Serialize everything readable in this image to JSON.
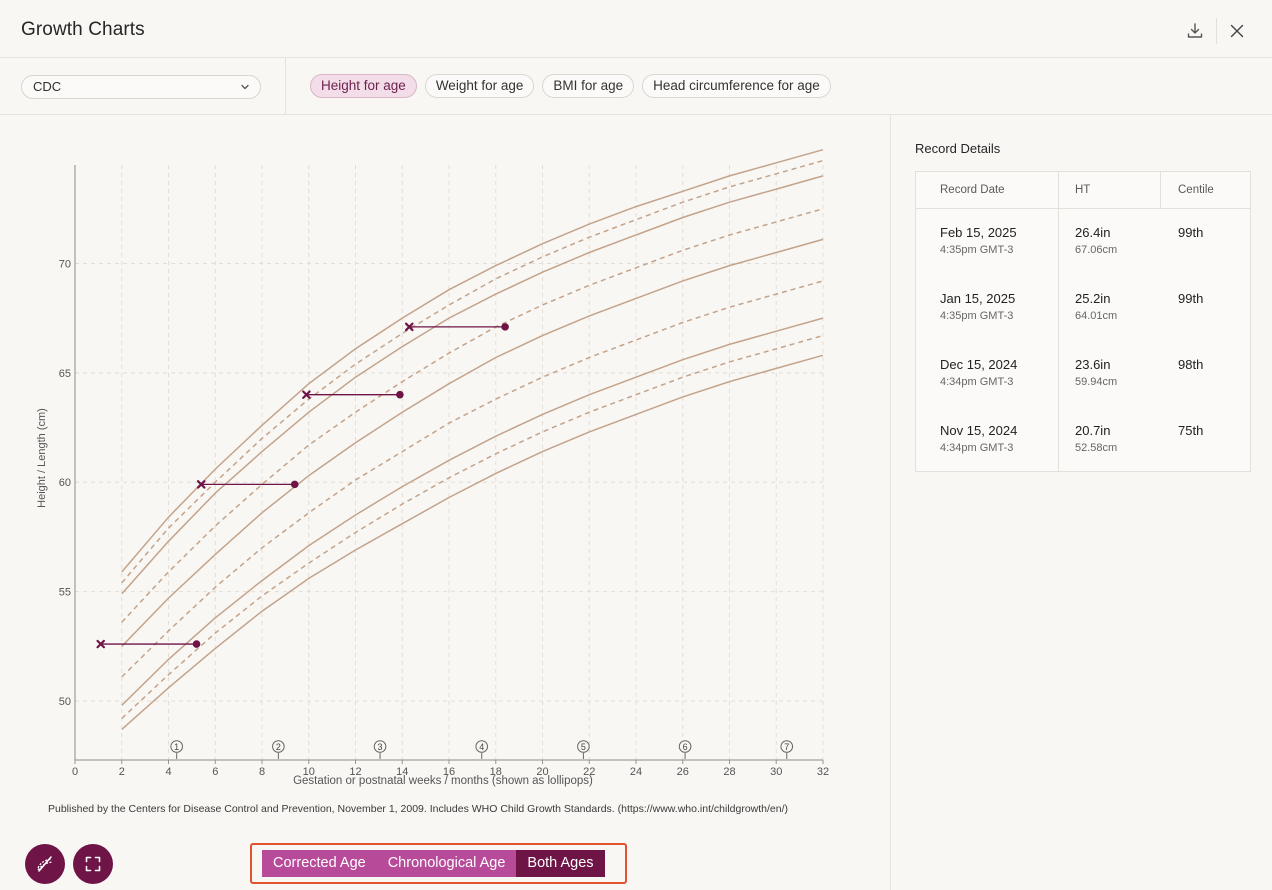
{
  "header": {
    "title": "Growth Charts",
    "download_icon": "download-icon",
    "close_icon": "close-icon"
  },
  "toolbar": {
    "source_select": {
      "value": "CDC"
    },
    "tabs": [
      {
        "label": "Height for age",
        "active": true
      },
      {
        "label": "Weight for age",
        "active": false
      },
      {
        "label": "BMI for age",
        "active": false
      },
      {
        "label": "Head circumference for age",
        "active": false
      }
    ]
  },
  "chart_data": {
    "type": "line",
    "xlabel": "Gestation or postnatal weeks / months (shown as lollipops)",
    "ylabel": "Height / Length (cm)",
    "xlim": [
      0,
      32
    ],
    "ylim": [
      47.3,
      74.5
    ],
    "x_ticks": [
      0,
      2,
      4,
      6,
      8,
      10,
      12,
      14,
      16,
      18,
      20,
      22,
      24,
      26,
      28,
      30,
      32
    ],
    "y_ticks": [
      50,
      55,
      60,
      65,
      70
    ],
    "grid": true,
    "percentile_x": [
      2,
      4,
      6,
      8,
      10,
      12,
      14,
      16,
      18,
      20,
      22,
      24,
      26,
      28,
      30,
      32
    ],
    "percentile_curves": [
      {
        "style": "solid",
        "values": [
          55.9,
          58.4,
          60.6,
          62.6,
          64.5,
          66.1,
          67.5,
          68.8,
          69.9,
          70.9,
          71.8,
          72.6,
          73.3,
          74.0,
          74.6,
          75.2
        ]
      },
      {
        "style": "dashed",
        "values": [
          55.4,
          57.9,
          60.0,
          62.0,
          63.8,
          65.4,
          66.8,
          68.1,
          69.3,
          70.3,
          71.2,
          72.0,
          72.8,
          73.5,
          74.1,
          74.7
        ]
      },
      {
        "style": "solid",
        "values": [
          54.9,
          57.3,
          59.5,
          61.4,
          63.2,
          64.8,
          66.2,
          67.5,
          68.6,
          69.6,
          70.5,
          71.3,
          72.1,
          72.8,
          73.4,
          74.0
        ]
      },
      {
        "style": "dashed",
        "values": [
          53.6,
          55.9,
          58.0,
          59.9,
          61.7,
          63.2,
          64.6,
          65.9,
          67.1,
          68.1,
          69.0,
          69.8,
          70.6,
          71.3,
          71.9,
          72.5
        ]
      },
      {
        "style": "solid",
        "values": [
          52.5,
          54.7,
          56.7,
          58.6,
          60.3,
          61.8,
          63.2,
          64.5,
          65.7,
          66.7,
          67.6,
          68.4,
          69.2,
          69.9,
          70.5,
          71.1
        ]
      },
      {
        "style": "dashed",
        "values": [
          51.1,
          53.2,
          55.2,
          57.0,
          58.6,
          60.1,
          61.4,
          62.7,
          63.8,
          64.8,
          65.7,
          66.5,
          67.3,
          68.0,
          68.6,
          69.2
        ]
      },
      {
        "style": "solid",
        "values": [
          49.8,
          51.9,
          53.8,
          55.5,
          57.1,
          58.5,
          59.8,
          61.0,
          62.1,
          63.1,
          64.0,
          64.8,
          65.6,
          66.3,
          66.9,
          67.5
        ]
      },
      {
        "style": "dashed",
        "values": [
          49.2,
          51.2,
          53.1,
          54.8,
          56.3,
          57.7,
          59.0,
          60.2,
          61.3,
          62.3,
          63.2,
          64.0,
          64.8,
          65.5,
          66.1,
          66.7
        ]
      },
      {
        "style": "solid",
        "values": [
          48.7,
          50.6,
          52.4,
          54.1,
          55.6,
          56.9,
          58.1,
          59.3,
          60.4,
          61.4,
          62.3,
          63.1,
          63.9,
          64.6,
          65.2,
          65.8
        ]
      }
    ],
    "month_markers": [
      {
        "label": "1",
        "x": 4.35
      },
      {
        "label": "2",
        "x": 8.7
      },
      {
        "label": "3",
        "x": 13.05
      },
      {
        "label": "4",
        "x": 17.4
      },
      {
        "label": "5",
        "x": 21.75
      },
      {
        "label": "6",
        "x": 26.1
      },
      {
        "label": "7",
        "x": 30.45
      }
    ],
    "measurements": [
      {
        "corrected_x": 1.1,
        "chronological_x": 5.2,
        "y": 52.6
      },
      {
        "corrected_x": 5.4,
        "chronological_x": 9.4,
        "y": 59.9
      },
      {
        "corrected_x": 9.9,
        "chronological_x": 13.9,
        "y": 64.0
      },
      {
        "corrected_x": 14.3,
        "chronological_x": 18.4,
        "y": 67.1
      }
    ],
    "colors": {
      "curve": "#c3a38a",
      "measurement": "#6e1447",
      "grid": "#e2ddd5"
    }
  },
  "source_note": "Published by the Centers for Disease Control and Prevention, November 1, 2009. Includes WHO Child Growth Standards. (https://www.who.int/childgrowth/en/)",
  "bottom_controls": {
    "hide_icon": "hide-lines-icon",
    "fullscreen_icon": "fullscreen-icon",
    "age_toggle": [
      {
        "label": "Corrected Age",
        "active": false
      },
      {
        "label": "Chronological Age",
        "active": false
      },
      {
        "label": "Both Ages",
        "active": true
      }
    ]
  },
  "record_details": {
    "title": "Record Details",
    "columns": [
      "Record Date",
      "HT",
      "Centile"
    ],
    "rows": [
      {
        "date": "Feb 15, 2025",
        "time": "4:35pm GMT-3",
        "ht_in": "26.4in",
        "ht_cm": "67.06cm",
        "centile": "99th"
      },
      {
        "date": "Jan 15, 2025",
        "time": "4:35pm GMT-3",
        "ht_in": "25.2in",
        "ht_cm": "64.01cm",
        "centile": "99th"
      },
      {
        "date": "Dec 15, 2024",
        "time": "4:34pm GMT-3",
        "ht_in": "23.6in",
        "ht_cm": "59.94cm",
        "centile": "98th"
      },
      {
        "date": "Nov 15, 2024",
        "time": "4:34pm GMT-3",
        "ht_in": "20.7in",
        "ht_cm": "52.58cm",
        "centile": "75th"
      }
    ]
  }
}
